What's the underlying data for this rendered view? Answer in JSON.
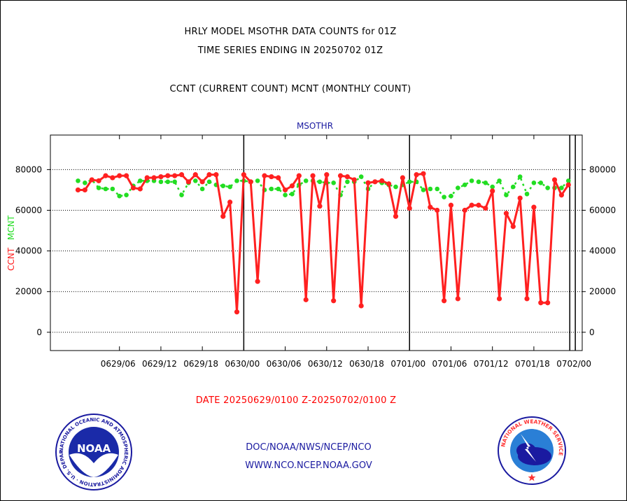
{
  "header": {
    "line1": "HRLY MODEL MSOTHR DATA COUNTS for 01Z",
    "line2": "TIME SERIES ENDING IN 20250702 01Z",
    "line3": "CCNT (CURRENT COUNT) MCNT (MONTHLY COUNT)"
  },
  "footer": {
    "date_range": "DATE 20250629/0100 Z-20250702/0100 Z",
    "org": "DOC/NOAA/NWS/NCEP/NCO",
    "url": "WWW.NCO.NCEP.NOAA.GOV",
    "noaa_logo_text": "NOAA",
    "noaa_seal_text": "NATIONAL OCEANIC AND ATMOSPHERIC ADMINISTRATION · U.S. DEPARTMENT OF COMMERCE",
    "nws_seal_text": "NATIONAL WEATHER SERVICE"
  },
  "chart_data": {
    "type": "line",
    "title": "MSOTHR",
    "ylabel_ccnt": "CCNT",
    "ylabel_mcnt": "MCNT",
    "ylim": [
      -9000,
      97000
    ],
    "yticks": [
      0,
      20000,
      40000,
      60000,
      80000
    ],
    "ytick_labels": [
      "0",
      "20000",
      "40000",
      "60000",
      "80000"
    ],
    "x_hours_range": [
      -4,
      73
    ],
    "xticks": [
      6,
      12,
      18,
      24,
      30,
      36,
      42,
      48,
      54,
      60,
      66,
      72
    ],
    "xtick_labels": [
      "0629/06",
      "0629/12",
      "0629/18",
      "0630/00",
      "0630/06",
      "0630/12",
      "0630/18",
      "0701/00",
      "0701/06",
      "0701/12",
      "0701/18",
      "0702/00"
    ],
    "day_boundaries": [
      24,
      48,
      72
    ],
    "end_marker_hour": 71.2,
    "grid": true,
    "colors": {
      "ccnt": "#ff2020",
      "mcnt": "#22dd22",
      "axis": "#000000",
      "title": "#1a1aa0"
    },
    "series": [
      {
        "name": "CCNT",
        "color": "#ff2020",
        "start_hour": 0,
        "values": [
          70000,
          70000,
          75000,
          74500,
          77000,
          76000,
          77000,
          77000,
          71000,
          70500,
          76000,
          76000,
          76500,
          77000,
          77000,
          77500,
          74000,
          77500,
          74000,
          77500,
          77500,
          57000,
          64000,
          10000,
          77500,
          74000,
          25000,
          77000,
          76500,
          76000,
          70000,
          72000,
          77000,
          16000,
          77000,
          62000,
          77500,
          15500,
          77000,
          76500,
          75000,
          13000,
          73500,
          74000,
          74500,
          73000,
          57000,
          76000,
          61000,
          77500,
          78000,
          61500,
          60000,
          15500,
          62500,
          16500,
          60000,
          62500,
          62500,
          61000,
          69500,
          16500,
          58500,
          52000,
          66000,
          16500,
          61500,
          14500,
          14500,
          75000,
          67500,
          72500
        ]
      },
      {
        "name": "MCNT",
        "color": "#22dd22",
        "start_hour": 0,
        "values": [
          74500,
          73500,
          75000,
          71000,
          70500,
          70500,
          67000,
          67500,
          72000,
          74500,
          74500,
          74500,
          74000,
          74000,
          74000,
          67500,
          73500,
          74500,
          70500,
          74000,
          72500,
          72000,
          71500,
          74500,
          74500,
          74000,
          74500,
          70000,
          70500,
          70500,
          67500,
          68000,
          72500,
          74500,
          74500,
          74000,
          73500,
          73500,
          67500,
          74000,
          74000,
          76500,
          70500,
          74000,
          73500,
          72500,
          71500,
          72500,
          74000,
          74000,
          70000,
          70500,
          70500,
          66500,
          67000,
          71000,
          72500,
          74500,
          74000,
          73500,
          71500,
          74500,
          67500,
          71500,
          76500,
          68000,
          73500,
          73500,
          71000,
          71000,
          71000,
          74500
        ]
      }
    ]
  }
}
